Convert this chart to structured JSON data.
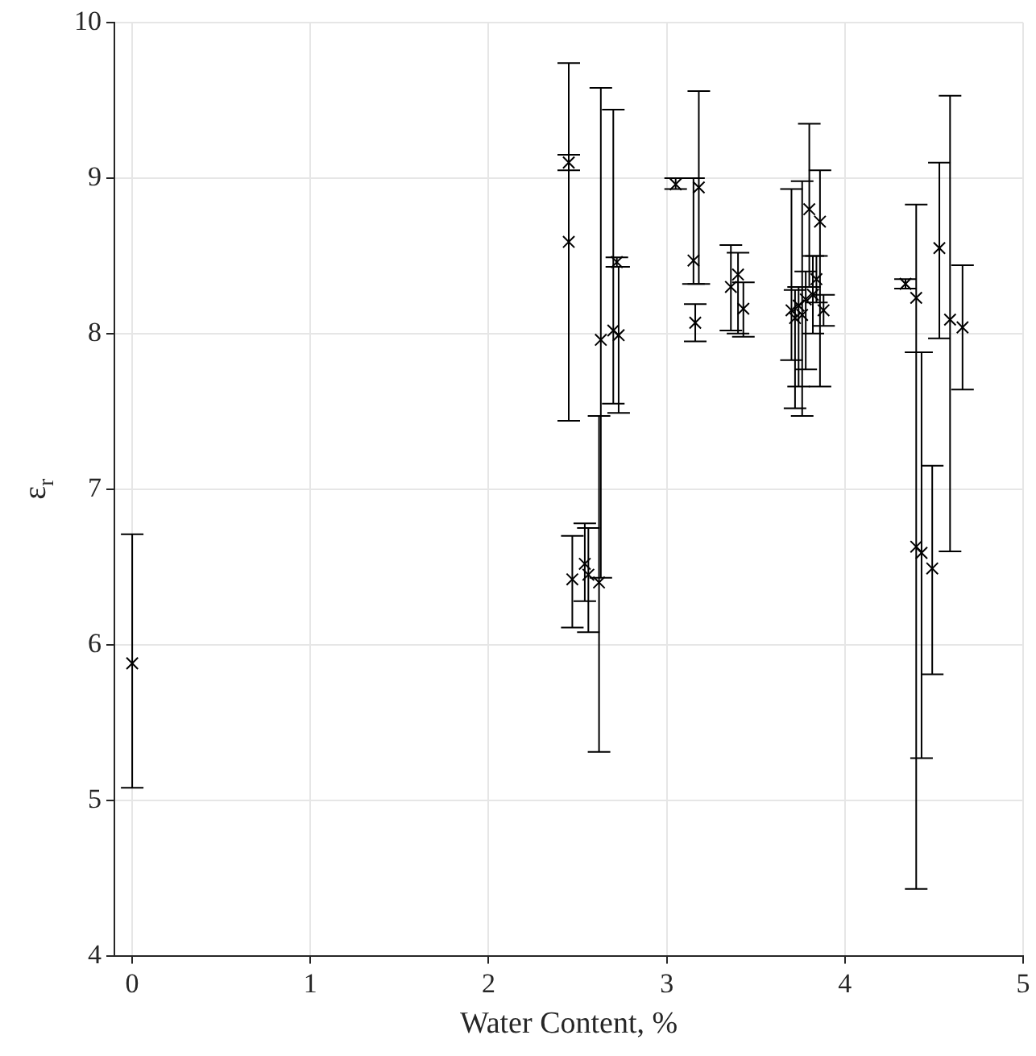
{
  "chart_data": {
    "type": "scatter",
    "xlabel": "Water Content, %",
    "ylabel": "ε$_{r}$",
    "xlim": [
      -0.1,
      5
    ],
    "xticks": [
      0,
      1,
      2,
      3,
      4,
      5
    ],
    "ylim": [
      4,
      10
    ],
    "yticks": [
      4,
      5,
      6,
      7,
      8,
      9,
      10
    ],
    "grid": true,
    "legend": false,
    "marker": "cross",
    "series": [
      {
        "color": "#000000",
        "x": [
          0,
          2.45,
          2.45,
          2.47,
          2.54,
          2.56,
          2.62,
          2.63,
          2.7,
          2.72,
          2.73,
          3.05,
          3.18,
          3.15,
          3.16,
          3.36,
          3.4,
          3.43,
          3.7,
          3.72,
          3.74,
          3.76,
          3.78,
          3.8,
          3.82,
          3.84,
          3.86,
          3.88,
          4.34,
          4.4,
          4.53,
          4.59,
          4.66,
          4.4,
          4.43,
          4.49
        ],
        "values": [
          5.88,
          9.1,
          8.59,
          6.42,
          6.52,
          6.45,
          6.4,
          7.96,
          8.02,
          8.46,
          7.99,
          8.96,
          8.94,
          8.47,
          8.07,
          8.3,
          8.38,
          8.16,
          8.15,
          8.1,
          8.18,
          8.12,
          8.22,
          8.8,
          8.25,
          8.35,
          8.72,
          8.15,
          8.32,
          8.23,
          8.55,
          8.09,
          8.04,
          6.63,
          6.59,
          6.49
        ],
        "errors": [
          [
            5.08,
            6.71
          ],
          [
            9.05,
            9.15
          ],
          [
            7.44,
            9.74
          ],
          [
            6.11,
            6.7
          ],
          [
            6.28,
            6.78
          ],
          [
            6.08,
            6.75
          ],
          [
            5.31,
            7.47
          ],
          [
            6.43,
            9.58
          ],
          [
            7.55,
            9.44
          ],
          [
            8.43,
            8.49
          ],
          [
            7.49,
            8.43
          ],
          [
            8.93,
            9.0
          ],
          [
            8.32,
            9.56
          ],
          [
            8.32,
            9.0
          ],
          [
            7.95,
            8.19
          ],
          [
            8.02,
            8.57
          ],
          [
            8.0,
            8.52
          ],
          [
            7.98,
            8.33
          ],
          [
            7.83,
            8.93
          ],
          [
            7.52,
            8.28
          ],
          [
            7.66,
            8.3
          ],
          [
            7.47,
            8.98
          ],
          [
            7.77,
            8.4
          ],
          [
            8.3,
            9.35
          ],
          [
            8.0,
            8.5
          ],
          [
            8.2,
            8.5
          ],
          [
            7.66,
            9.05
          ],
          [
            8.05,
            8.25
          ],
          [
            8.29,
            8.35
          ],
          [
            7.88,
            8.83
          ],
          [
            7.97,
            9.1
          ],
          [
            6.6,
            9.53
          ],
          [
            7.64,
            8.44
          ],
          [
            4.43,
            7.88
          ],
          [
            5.27,
            7.88
          ],
          [
            5.81,
            7.15
          ]
        ]
      }
    ]
  }
}
